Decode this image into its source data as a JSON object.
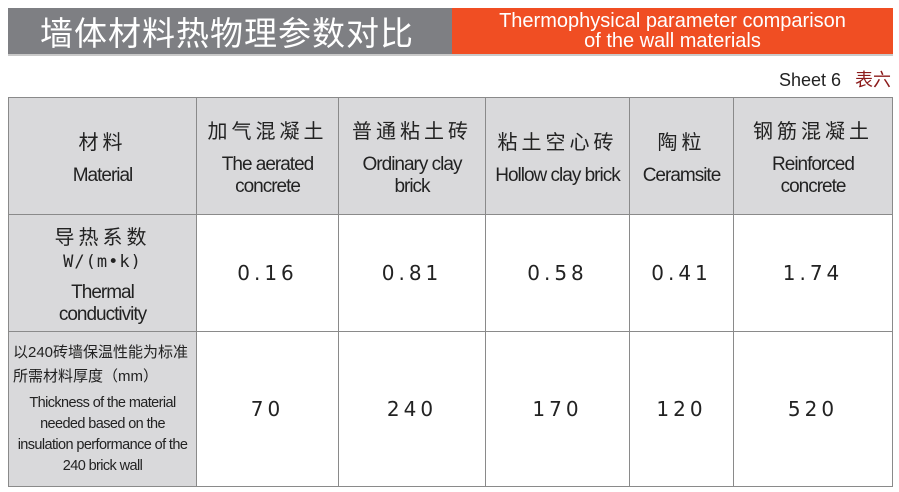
{
  "title": {
    "cn": "墙体材料热物理参数对比",
    "en_line1": "Thermophysical parameter comparison",
    "en_line2": "of the wall materials"
  },
  "sheet": {
    "en": "Sheet 6",
    "cn": "表六"
  },
  "colors": {
    "title_gray": "#7e7f83",
    "title_orange": "#f04e23",
    "cell_gray": "#d9d9db"
  },
  "table": {
    "header": [
      {
        "cn": "材料",
        "en": "Material"
      },
      {
        "cn": "加气混凝土",
        "en": "The aerated concrete"
      },
      {
        "cn": "普通粘土砖",
        "en": "Ordinary clay brick"
      },
      {
        "cn": "粘土空心砖",
        "en": "Hollow clay brick"
      },
      {
        "cn": "陶粒",
        "en": "Ceramsite"
      },
      {
        "cn": "钢筋混凝土",
        "en": "Reinforced concrete"
      }
    ],
    "rows": [
      {
        "label_cn": "导热系数",
        "label_unit": "W/(m•k)",
        "label_en": "Thermal conductivity",
        "values": [
          "0.16",
          "0.81",
          "0.58",
          "0.41",
          "1.74"
        ]
      },
      {
        "label_cn": "以240砖墙保温性能为标准所需材料厚度（mm）",
        "label_en": "Thickness of the material needed based on the insulation performance of the 240 brick wall",
        "values": [
          "70",
          "240",
          "170",
          "120",
          "520"
        ]
      }
    ]
  }
}
